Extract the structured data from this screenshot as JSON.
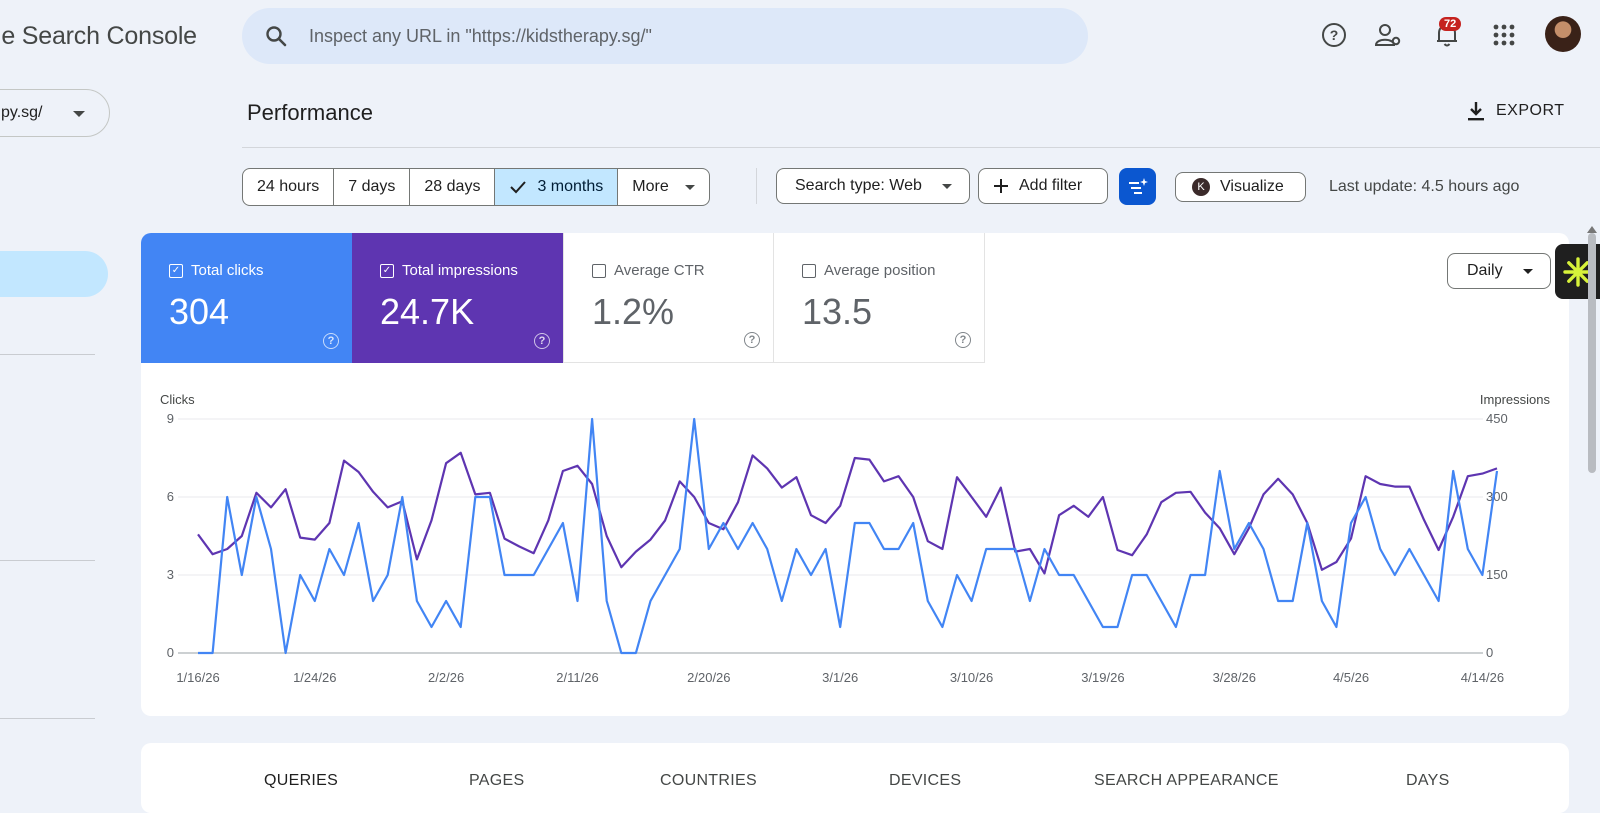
{
  "app": {
    "title": "le Search Console"
  },
  "search": {
    "placeholder": "Inspect any URL in \"https://kidstherapy.sg/\""
  },
  "topbar": {
    "notifications_count": "72",
    "icons": [
      "help-icon",
      "manage-users-icon",
      "notifications-icon",
      "apps-grid-icon",
      "avatar"
    ]
  },
  "property": {
    "label": "py.sg/"
  },
  "page": {
    "title": "Performance",
    "export_label": "EXPORT"
  },
  "filters": {
    "date_ranges": [
      {
        "label": "24 hours",
        "selected": false
      },
      {
        "label": "7 days",
        "selected": false
      },
      {
        "label": "28 days",
        "selected": false
      },
      {
        "label": "3 months",
        "selected": true
      },
      {
        "label": "More",
        "selected": false
      }
    ],
    "search_type": "Search type: Web",
    "add_filter": "Add filter",
    "visualize": "Visualize",
    "last_update": "Last update: 4.5 hours ago"
  },
  "metrics": [
    {
      "label": "Total clicks",
      "value": "304",
      "checked": true,
      "color": "#4285f4"
    },
    {
      "label": "Total impressions",
      "value": "24.7K",
      "checked": true,
      "color": "#5e35b1"
    },
    {
      "label": "Average CTR",
      "value": "1.2%",
      "checked": false
    },
    {
      "label": "Average position",
      "value": "13.5",
      "checked": false
    }
  ],
  "granularity": {
    "label": "Daily"
  },
  "chart_data": {
    "type": "line",
    "xlabel": "",
    "ylabel_left": "Clicks",
    "ylabel_right": "Impressions",
    "left_ylim": [
      0,
      9
    ],
    "right_ylim": [
      0,
      450
    ],
    "left_ticks": [
      "0",
      "3",
      "6",
      "9"
    ],
    "right_ticks": [
      "0",
      "150",
      "300",
      "450"
    ],
    "x_tick_labels": [
      "1/16/26",
      "1/24/26",
      "2/2/26",
      "2/11/26",
      "2/20/26",
      "3/1/26",
      "3/10/26",
      "3/19/26",
      "3/28/26",
      "4/5/26",
      "4/14/26"
    ],
    "x_tick_index": [
      0,
      8,
      17,
      26,
      35,
      44,
      53,
      62,
      71,
      79,
      88
    ],
    "series": [
      {
        "name": "Clicks",
        "axis": "left",
        "color": "#4285f4",
        "values": [
          0,
          0,
          6,
          3,
          6,
          4,
          0,
          3,
          2,
          4,
          3,
          5,
          2,
          3,
          6,
          2,
          1,
          2,
          1,
          6,
          6,
          3,
          3,
          3,
          4,
          5,
          2,
          9,
          2,
          0,
          0,
          2,
          3,
          4,
          9,
          4,
          5,
          4,
          5,
          4,
          2,
          4,
          3,
          4,
          1,
          5,
          5,
          4,
          4,
          5,
          2,
          1,
          3,
          2,
          4,
          4,
          4,
          2,
          4,
          3,
          3,
          2,
          1,
          1,
          3,
          3,
          2,
          1,
          3,
          3,
          7,
          4,
          5,
          4,
          2,
          2,
          5,
          2,
          1,
          5,
          6,
          4,
          3,
          4,
          3,
          2,
          7,
          4,
          3,
          7
        ]
      },
      {
        "name": "Impressions",
        "axis": "right",
        "color": "#5e35b1",
        "values": [
          228,
          190,
          200,
          225,
          308,
          280,
          315,
          222,
          218,
          250,
          370,
          348,
          310,
          280,
          292,
          180,
          255,
          365,
          385,
          305,
          308,
          220,
          205,
          192,
          255,
          350,
          360,
          325,
          225,
          165,
          195,
          218,
          255,
          330,
          300,
          250,
          238,
          290,
          380,
          355,
          318,
          338,
          265,
          250,
          283,
          375,
          372,
          330,
          340,
          300,
          215,
          200,
          338,
          300,
          262,
          318,
          195,
          200,
          153,
          265,
          283,
          262,
          300,
          198,
          188,
          228,
          290,
          308,
          310,
          270,
          240,
          190,
          240,
          305,
          335,
          305,
          250,
          160,
          175,
          220,
          340,
          325,
          320,
          320,
          256,
          198,
          262,
          340,
          345,
          355
        ]
      }
    ]
  },
  "tabs": [
    "QUERIES",
    "PAGES",
    "COUNTRIES",
    "DEVICES",
    "SEARCH APPEARANCE",
    "DAYS"
  ]
}
